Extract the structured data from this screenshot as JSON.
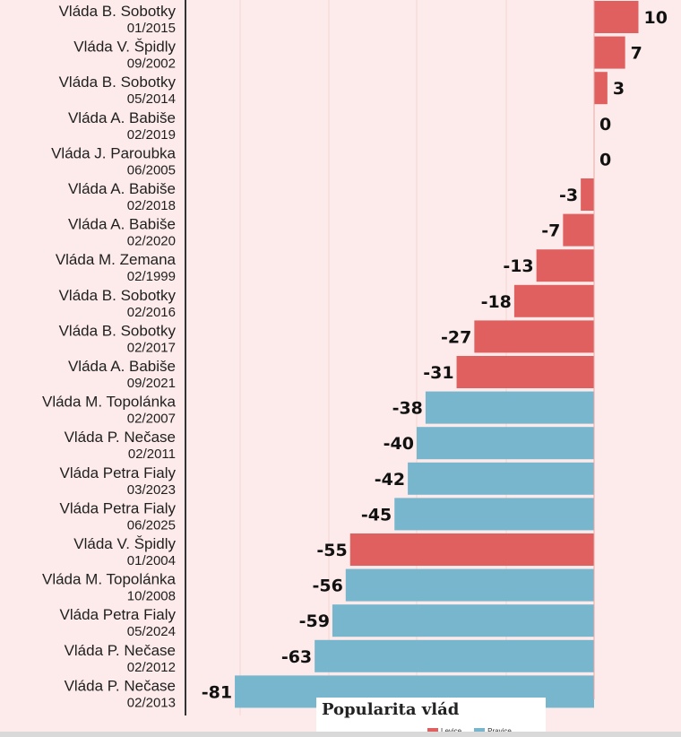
{
  "chart_data": {
    "type": "bar",
    "orientation": "horizontal",
    "title": "Popularita vlád",
    "legend": [
      {
        "label": "Levice",
        "color": "#e06060"
      },
      {
        "label": "Pravice",
        "color": "#78b6ce"
      }
    ],
    "xlim": [
      -81,
      10
    ],
    "grid": true,
    "bars": [
      {
        "name": "Vláda B. Sobotky",
        "date": "01/2015",
        "value": 10,
        "side": "Levice"
      },
      {
        "name": "Vláda V. Špidly",
        "date": "09/2002",
        "value": 7,
        "side": "Levice"
      },
      {
        "name": "Vláda B. Sobotky",
        "date": "05/2014",
        "value": 3,
        "side": "Levice"
      },
      {
        "name": "Vláda A. Babiše",
        "date": "02/2019",
        "value": 0,
        "side": "Levice"
      },
      {
        "name": "Vláda J. Paroubka",
        "date": "06/2005",
        "value": 0,
        "side": "Levice"
      },
      {
        "name": "Vláda A. Babiše",
        "date": "02/2018",
        "value": -3,
        "side": "Levice"
      },
      {
        "name": "Vláda A. Babiše",
        "date": "02/2020",
        "value": -7,
        "side": "Levice"
      },
      {
        "name": "Vláda M. Zemana",
        "date": "02/1999",
        "value": -13,
        "side": "Levice"
      },
      {
        "name": "Vláda B. Sobotky",
        "date": "02/2016",
        "value": -18,
        "side": "Levice"
      },
      {
        "name": "Vláda B. Sobotky",
        "date": "02/2017",
        "value": -27,
        "side": "Levice"
      },
      {
        "name": "Vláda A. Babiše",
        "date": "09/2021",
        "value": -31,
        "side": "Levice"
      },
      {
        "name": "Vláda M. Topolánka",
        "date": "02/2007",
        "value": -38,
        "side": "Pravice"
      },
      {
        "name": "Vláda P. Nečase",
        "date": "02/2011",
        "value": -40,
        "side": "Pravice"
      },
      {
        "name": "Vláda Petra Fialy",
        "date": "03/2023",
        "value": -42,
        "side": "Pravice"
      },
      {
        "name": "Vláda Petra Fialy",
        "date": "06/2025",
        "value": -45,
        "side": "Pravice"
      },
      {
        "name": "Vláda V. Špidly",
        "date": "01/2004",
        "value": -55,
        "side": "Levice"
      },
      {
        "name": "Vláda M. Topolánka",
        "date": "10/2008",
        "value": -56,
        "side": "Pravice"
      },
      {
        "name": "Vláda Petra Fialy",
        "date": "05/2024",
        "value": -59,
        "side": "Pravice"
      },
      {
        "name": "Vláda P. Nečase",
        "date": "02/2012",
        "value": -63,
        "side": "Pravice"
      },
      {
        "name": "Vláda P. Nečase",
        "date": "02/2013",
        "value": -81,
        "side": "Pravice"
      }
    ]
  }
}
